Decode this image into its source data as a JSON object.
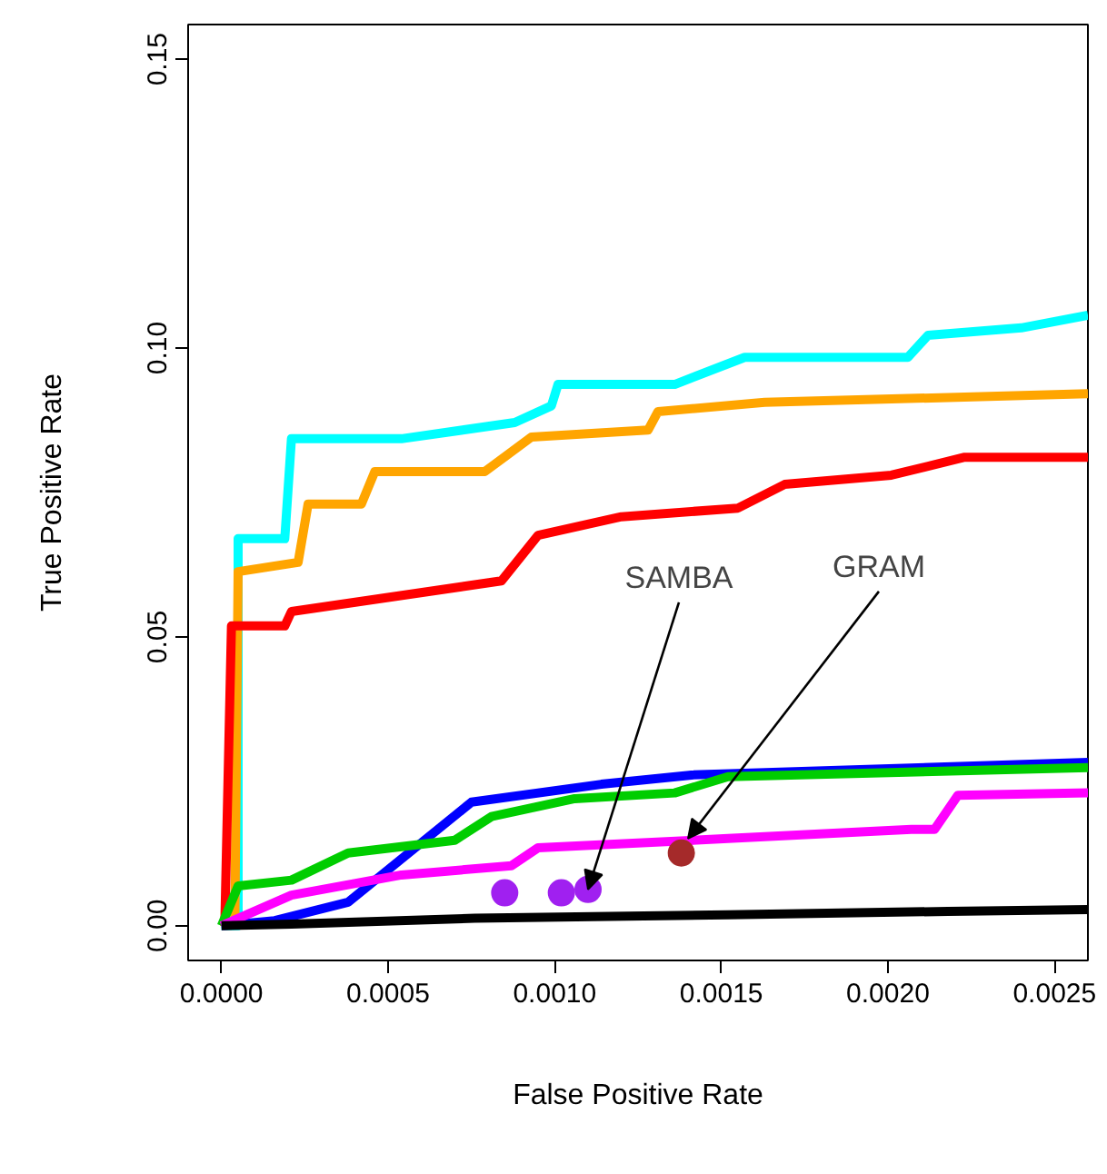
{
  "chart_data": {
    "type": "line",
    "xlabel": "False Positive Rate",
    "ylabel": "True Positive Rate",
    "xlim": [
      -0.0001,
      0.0026
    ],
    "ylim": [
      -0.006,
      0.156
    ],
    "xticks": [
      {
        "value": 0,
        "label": "0.0000"
      },
      {
        "value": 0.0005,
        "label": "0.0005"
      },
      {
        "value": 0.001,
        "label": "0.0010"
      },
      {
        "value": 0.0015,
        "label": "0.0015"
      },
      {
        "value": 0.002,
        "label": "0.0020"
      },
      {
        "value": 0.0025,
        "label": "0.0025"
      }
    ],
    "yticks": [
      {
        "value": 0,
        "label": "0.00"
      },
      {
        "value": 0.05,
        "label": "0.05"
      },
      {
        "value": 0.1,
        "label": "0.10"
      },
      {
        "value": 0.15,
        "label": "0.15"
      }
    ],
    "grid": false,
    "line_style": "solid",
    "series": [
      {
        "color": "#00ffff",
        "x": [
          0,
          5e-05,
          5e-05,
          0.00019,
          0.00021,
          0.00054,
          0.00088,
          0.00099,
          0.00101,
          0.00136,
          0.00157,
          0.00206,
          0.00212,
          0.0024,
          0.0026
        ],
        "values": [
          0,
          0,
          0.067,
          0.067,
          0.0843,
          0.0843,
          0.0871,
          0.09,
          0.0937,
          0.0937,
          0.0984,
          0.0984,
          0.1022,
          0.1035,
          0.1057
        ]
      },
      {
        "color": "#ffa500",
        "x": [
          4e-05,
          5e-05,
          0.00023,
          0.00026,
          0.00042,
          0.00046,
          0.00079,
          0.00093,
          0.00128,
          0.00131,
          0.00163,
          0.0026
        ],
        "values": [
          0,
          0.0613,
          0.0629,
          0.073,
          0.073,
          0.0786,
          0.0786,
          0.0846,
          0.0858,
          0.089,
          0.0906,
          0.0921
        ]
      },
      {
        "color": "#ff0000",
        "x": [
          1e-05,
          3e-05,
          0.00019,
          0.00021,
          0.00084,
          0.00095,
          0.0012,
          0.00155,
          0.00169,
          0.00201,
          0.00223,
          0.0026
        ],
        "values": [
          0,
          0.0519,
          0.0519,
          0.0544,
          0.0597,
          0.0676,
          0.0708,
          0.0723,
          0.0764,
          0.078,
          0.0811,
          0.0811
        ]
      },
      {
        "color": "#0000ff",
        "x": [
          0,
          0.00016,
          0.00038,
          0.00075,
          0.00114,
          0.00141,
          0.0026
        ],
        "values": [
          0,
          0.0009,
          0.0041,
          0.0214,
          0.0245,
          0.0261,
          0.0283
        ]
      },
      {
        "color": "#00cd00",
        "x": [
          0,
          5e-05,
          0.00021,
          0.00038,
          0.0007,
          0.00081,
          0.00106,
          0.00136,
          0.00152,
          0.0026
        ],
        "values": [
          0,
          0.0069,
          0.0079,
          0.0126,
          0.0148,
          0.0189,
          0.022,
          0.023,
          0.0258,
          0.0274
        ]
      },
      {
        "color": "#ff00ff",
        "x": [
          0,
          0.00021,
          0.00054,
          0.00087,
          0.00095,
          0.00152,
          0.00207,
          0.00214,
          0.00221,
          0.0026
        ],
        "values": [
          0,
          0.0053,
          0.0088,
          0.0104,
          0.0135,
          0.0151,
          0.0167,
          0.0167,
          0.0226,
          0.023
        ]
      },
      {
        "color": "#000000",
        "x": [
          0,
          0.00021,
          0.00076,
          0.00152,
          0.00218,
          0.0026
        ],
        "values": [
          0,
          0.0003,
          0.0013,
          0.0019,
          0.0025,
          0.0028
        ]
      },
      {
        "type": "scatter",
        "marker": "circle",
        "color": "#a020f0",
        "x": [
          0.00085,
          0.00102,
          0.0011
        ],
        "values": [
          0.0057,
          0.0057,
          0.0063
        ]
      },
      {
        "type": "scatter",
        "marker": "circle",
        "color": "#a52a2a",
        "x": [
          0.00138
        ],
        "values": [
          0.0126
        ]
      }
    ],
    "annotations": [
      {
        "text": "SAMBA",
        "x": 0.0011,
        "y": 0.0063
      },
      {
        "text": "GRAM",
        "x": 0.0014,
        "y": 0.0151
      }
    ]
  }
}
